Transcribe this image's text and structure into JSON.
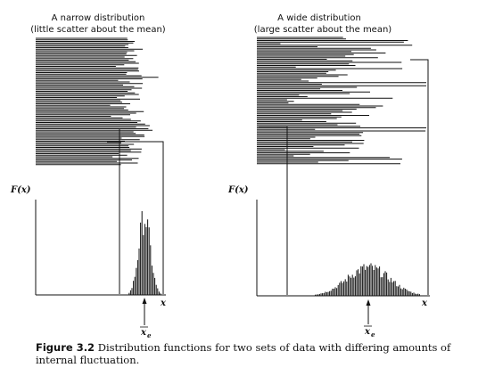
{
  "panels": [
    {
      "id": "narrow",
      "title_line1": "A narrow distribution",
      "title_line2": "(little scatter about the mean)",
      "y_label": "F(x)",
      "x_label": "x",
      "mean_label_main": "x",
      "mean_label_sub": "e"
    },
    {
      "id": "wide",
      "title_line1": "A wide distribution",
      "title_line2": "(large scatter about the mean)",
      "y_label": "F(x)",
      "x_label": "x",
      "mean_label_main": "x",
      "mean_label_sub": "e"
    }
  ],
  "caption": {
    "figure_label": "Figure 3.2",
    "text": "Distribution functions for two sets of data with differing amounts of internal fluctuation."
  },
  "colors": {
    "ink": "#111111",
    "background": "#ffffff"
  }
}
